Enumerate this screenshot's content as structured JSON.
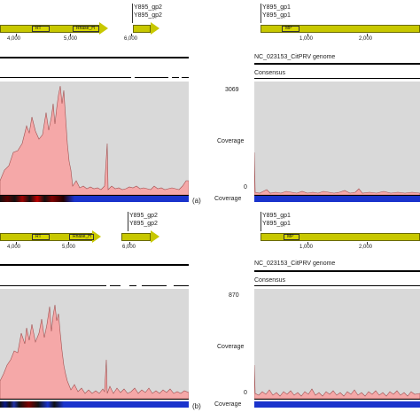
{
  "top": {
    "left": {
      "ticks": [
        "4,000",
        "5,000",
        "6,000"
      ],
      "domains": [
        "RT",
        "Rnase_H"
      ],
      "genes": [
        "Y895_gp2",
        "Y895_gp2"
      ],
      "marker": "(a)"
    },
    "right": {
      "genes": [
        "Y895_gp1",
        "Y895_gp1"
      ],
      "domain": "MP",
      "ticks": [
        "1,000",
        "2,000"
      ],
      "genome": "NC_023153_CitPRV genome",
      "consensus": "Consensus",
      "ymax": "3069",
      "ymin": "0",
      "ylabel": "Coverage",
      "bottom_label": "Coverage"
    }
  },
  "bottom": {
    "left": {
      "ticks": [
        "4,000",
        "5,000",
        "6,000"
      ],
      "domains": [
        "RT",
        "Rnase_H"
      ],
      "genes": [
        "Y895_gp2",
        "Y895_gp2"
      ],
      "marker": "(b)"
    },
    "right": {
      "genes": [
        "Y895_gp1",
        "Y895_gp1"
      ],
      "domain": "MP",
      "ticks": [
        "1,000",
        "2,000"
      ],
      "genome": "NC_023153_CitPRV genome",
      "consensus": "Consensus",
      "ymax": "870",
      "ymin": "0",
      "ylabel": "Coverage",
      "bottom_label": "Coverage"
    }
  },
  "colors": {
    "gene": "#c8c800",
    "coverage_fill": "#f5a8a8",
    "panel": "#d9d9d9",
    "heatmap": "#1a33cc"
  }
}
